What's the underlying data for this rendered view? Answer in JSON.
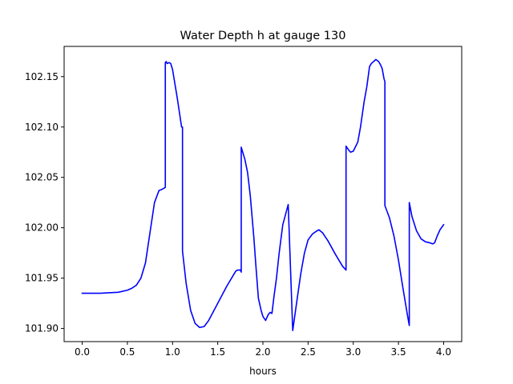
{
  "chart_data": {
    "type": "line",
    "title": "Water Depth h at gauge 130",
    "xlabel": "hours",
    "ylabel": "",
    "xlim": [
      -0.2,
      4.2
    ],
    "ylim": [
      101.887,
      102.18
    ],
    "xticks": [
      0.0,
      0.5,
      1.0,
      1.5,
      2.0,
      2.5,
      3.0,
      3.5,
      4.0
    ],
    "xtick_labels": [
      "0.0",
      "0.5",
      "1.0",
      "1.5",
      "2.0",
      "2.5",
      "3.0",
      "3.5",
      "4.0"
    ],
    "yticks": [
      101.9,
      101.95,
      102.0,
      102.05,
      102.1,
      102.15
    ],
    "ytick_labels": [
      "101.90",
      "101.95",
      "102.00",
      "102.05",
      "102.10",
      "102.15"
    ],
    "grid": false,
    "colors": {
      "line": "#0000ff"
    },
    "series": [
      {
        "x": [
          0.0,
          0.2,
          0.4,
          0.5,
          0.55,
          0.6,
          0.65,
          0.7,
          0.75,
          0.8,
          0.85,
          0.88,
          0.92,
          0.92,
          0.93,
          0.94,
          0.96,
          0.98,
          1.0,
          1.05,
          1.1,
          1.11,
          1.11,
          1.15,
          1.2,
          1.25,
          1.3,
          1.35,
          1.4,
          1.5,
          1.6,
          1.7,
          1.72,
          1.75,
          1.76,
          1.76,
          1.8,
          1.83,
          1.86,
          1.9,
          1.92,
          1.95,
          1.98,
          2.0,
          2.03,
          2.06,
          2.08,
          2.1,
          2.12,
          2.15,
          2.18,
          2.22,
          2.28,
          2.33,
          2.33,
          2.38,
          2.42,
          2.46,
          2.5,
          2.55,
          2.6,
          2.62,
          2.66,
          2.72,
          2.8,
          2.88,
          2.92,
          2.92,
          2.95,
          2.97,
          3.0,
          3.05,
          3.08,
          3.12,
          3.15,
          3.18,
          3.2,
          3.25,
          3.28,
          3.3,
          3.32,
          3.34,
          3.35,
          3.35,
          3.4,
          3.45,
          3.5,
          3.55,
          3.6,
          3.62,
          3.62,
          3.65,
          3.7,
          3.75,
          3.8,
          3.85,
          3.88,
          3.9,
          3.93,
          3.96,
          4.0
        ],
        "y": [
          101.935,
          101.935,
          101.936,
          101.938,
          101.94,
          101.943,
          101.95,
          101.965,
          101.995,
          102.025,
          102.037,
          102.038,
          102.04,
          102.164,
          102.165,
          102.163,
          102.164,
          102.163,
          102.157,
          102.13,
          102.1,
          102.1,
          101.977,
          101.945,
          101.918,
          101.905,
          101.901,
          101.902,
          101.908,
          101.925,
          101.942,
          101.957,
          101.958,
          101.958,
          101.956,
          102.08,
          102.068,
          102.055,
          102.032,
          101.99,
          101.965,
          101.93,
          101.918,
          101.912,
          101.908,
          101.914,
          101.916,
          101.915,
          101.93,
          101.95,
          101.975,
          102.003,
          102.023,
          101.898,
          101.898,
          101.93,
          101.955,
          101.975,
          101.988,
          101.994,
          101.997,
          101.998,
          101.995,
          101.987,
          101.974,
          101.962,
          101.958,
          102.081,
          102.077,
          102.075,
          102.076,
          102.085,
          102.1,
          102.125,
          102.14,
          102.16,
          102.163,
          102.167,
          102.165,
          102.162,
          102.158,
          102.148,
          102.145,
          102.022,
          102.01,
          101.992,
          101.968,
          101.94,
          101.913,
          101.903,
          102.025,
          102.011,
          101.997,
          101.989,
          101.986,
          101.985,
          101.984,
          101.985,
          101.992,
          101.998,
          102.003
        ]
      }
    ]
  }
}
